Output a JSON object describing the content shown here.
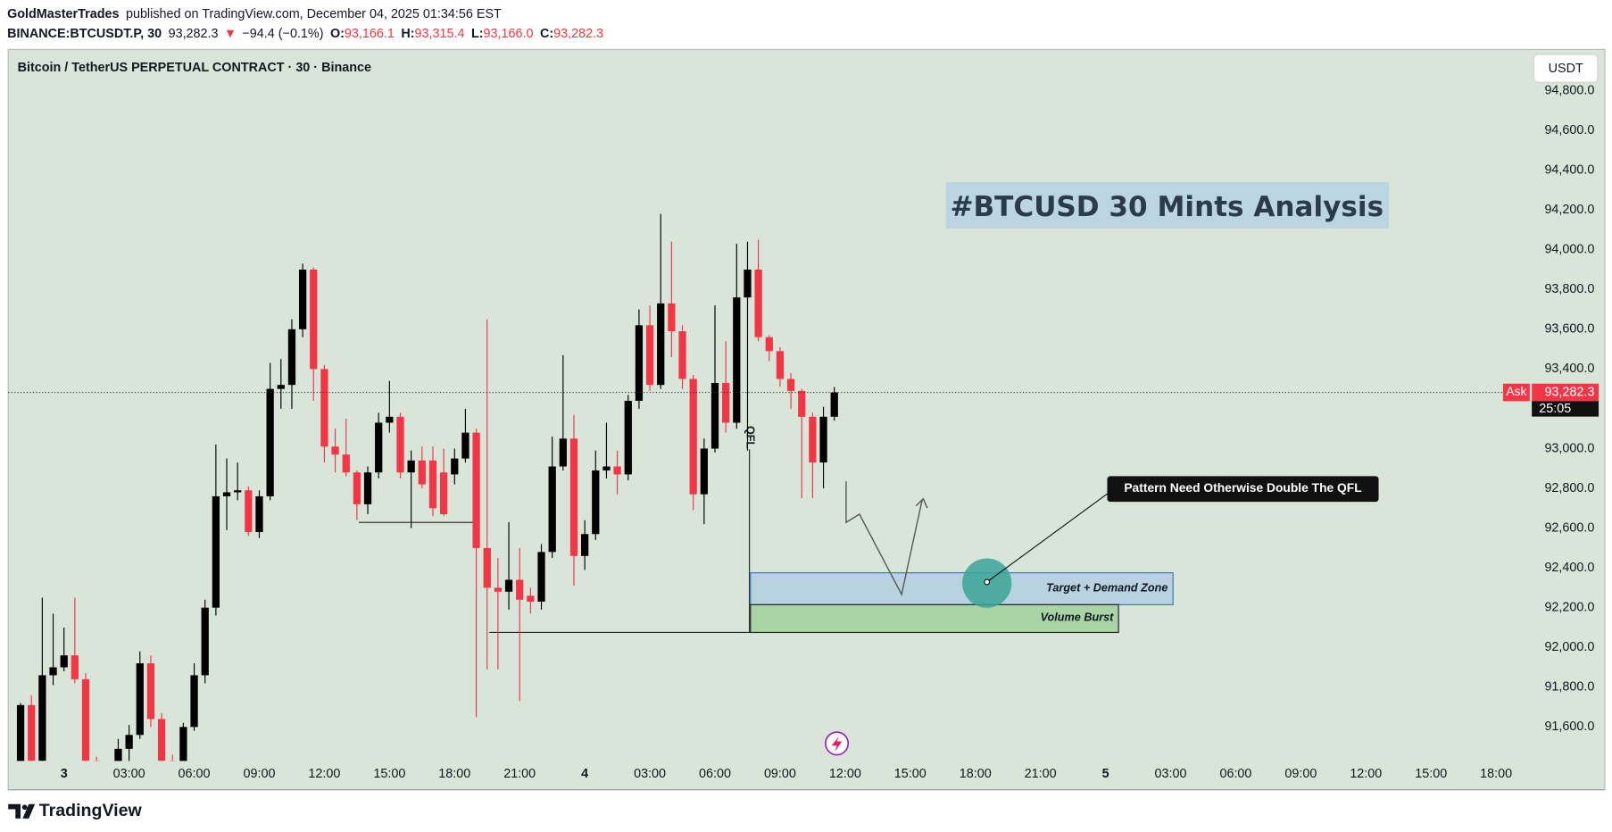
{
  "header": {
    "author": "GoldMasterTrades",
    "published": "published on TradingView.com, December 04, 2025 01:34:56 EST",
    "symbol": "BINANCE:BTCUSDT.P, 30",
    "last": "93,282.3",
    "direction": "▼",
    "change": "−94.4 (−0.1%)",
    "o_label": "O:",
    "o": "93,166.1",
    "h_label": "H:",
    "h": "93,315.4",
    "l_label": "L:",
    "l": "93,166.0",
    "c_label": "C:",
    "c": "93,282.3"
  },
  "footer": {
    "brand": "TradingView"
  },
  "chart_data": {
    "type": "candlestick",
    "title": "Bitcoin / TetherUS PERPETUAL CONTRACT · 30 · Binance",
    "currency": "USDT",
    "annotations": {
      "headline": "#BTCUSD 30 Mints Analysis",
      "callout": "Pattern Need Otherwise Double The QFL",
      "demand_zone": "Target + Demand Zone",
      "volume_zone": "Volume Burst",
      "qfl": "QFL"
    },
    "price_tag": "Ask",
    "price_label": "93,282.3",
    "countdown": "25:05",
    "up_color": "#000000",
    "down_color": "#f23645",
    "grid": false,
    "xlim": [
      -1.14,
      139.1
    ],
    "ylim": [
      91429,
      95007
    ],
    "xticks": [
      {
        "value": 4,
        "label": "3"
      },
      {
        "value": 10,
        "label": "03:00"
      },
      {
        "value": 16,
        "label": "06:00"
      },
      {
        "value": 22,
        "label": "09:00"
      },
      {
        "value": 28,
        "label": "12:00"
      },
      {
        "value": 34,
        "label": "15:00"
      },
      {
        "value": 40,
        "label": "18:00"
      },
      {
        "value": 46,
        "label": "21:00"
      },
      {
        "value": 52,
        "label": "4"
      },
      {
        "value": 58,
        "label": "03:00"
      },
      {
        "value": 64,
        "label": "06:00"
      },
      {
        "value": 70,
        "label": "09:00"
      },
      {
        "value": 76,
        "label": "12:00"
      },
      {
        "value": 82,
        "label": "15:00"
      },
      {
        "value": 88,
        "label": "18:00"
      },
      {
        "value": 94,
        "label": "21:00"
      },
      {
        "value": 100,
        "label": "5"
      },
      {
        "value": 106,
        "label": "03:00"
      },
      {
        "value": 112,
        "label": "06:00"
      },
      {
        "value": 118,
        "label": "09:00"
      },
      {
        "value": 124,
        "label": "12:00"
      },
      {
        "value": 130,
        "label": "15:00"
      },
      {
        "value": 136,
        "label": "18:00"
      }
    ],
    "yticks": [
      {
        "value": 91600,
        "label": "91,600.0"
      },
      {
        "value": 91800,
        "label": "91,800.0"
      },
      {
        "value": 92000,
        "label": "92,000.0"
      },
      {
        "value": 92200,
        "label": "92,200.0"
      },
      {
        "value": 92400,
        "label": "92,400.0"
      },
      {
        "value": 92600,
        "label": "92,600.0"
      },
      {
        "value": 92800,
        "label": "92,800.0"
      },
      {
        "value": 93000,
        "label": "93,000.0"
      },
      {
        "value": 93200,
        "label": "93,200.0"
      },
      {
        "value": 93400,
        "label": "93,400.0"
      },
      {
        "value": 93600,
        "label": "93,600.0"
      },
      {
        "value": 93800,
        "label": "93,800.0"
      },
      {
        "value": 94000,
        "label": "94,000.0"
      },
      {
        "value": 94200,
        "label": "94,200.0"
      },
      {
        "value": 94400,
        "label": "94,400.0"
      },
      {
        "value": 94600,
        "label": "94,600.0"
      },
      {
        "value": 94800,
        "label": "94,800.0"
      }
    ],
    "open": [
      91400,
      91710,
      91430,
      91860,
      91900,
      91960,
      91840,
      91430,
      91300,
      91380,
      91490,
      91560,
      91920,
      91640,
      91430,
      91400,
      91600,
      91860,
      92200,
      92760,
      92780,
      92790,
      92580,
      92760,
      93300,
      93320,
      93600,
      93900,
      93400,
      93010,
      92970,
      92880,
      92720,
      92880,
      93130,
      93160,
      92880,
      92940,
      92940,
      92880,
      92870,
      92950,
      93080,
      92500,
      92300,
      92280,
      92340,
      92260,
      92230,
      92480,
      92910,
      93050,
      92460,
      92570,
      92890,
      92910,
      92870,
      93240,
      93620,
      93320,
      93730,
      93590,
      93350,
      92770,
      93000,
      93330,
      93130,
      93760,
      93900,
      93560,
      93490,
      93350,
      93290,
      93160,
      92930,
      93160
    ],
    "high": [
      91720,
      91760,
      92250,
      92170,
      92100,
      92250,
      91870,
      91450,
      91420,
      91540,
      91610,
      91980,
      91960,
      91670,
      91460,
      91620,
      91920,
      92240,
      93020,
      92950,
      92930,
      92810,
      92790,
      93430,
      93450,
      93650,
      93930,
      93910,
      93420,
      93100,
      93150,
      92890,
      92910,
      93180,
      93340,
      93180,
      92990,
      93010,
      93010,
      93000,
      93000,
      93200,
      93100,
      93650,
      92450,
      92630,
      92500,
      92300,
      92520,
      93060,
      93470,
      93170,
      92640,
      92990,
      93130,
      92990,
      93270,
      93700,
      93720,
      94180,
      94040,
      93620,
      93370,
      93050,
      93720,
      93540,
      94030,
      94040,
      94050,
      93570,
      93510,
      93380,
      93300,
      93180,
      93210,
      93310
    ],
    "low": [
      91380,
      91400,
      91420,
      91810,
      91880,
      91820,
      91400,
      91250,
      91250,
      91350,
      91420,
      91540,
      91600,
      91400,
      91350,
      91380,
      91580,
      91820,
      92160,
      92590,
      92740,
      92560,
      92550,
      92740,
      93200,
      93200,
      93560,
      93240,
      92930,
      92880,
      92860,
      92640,
      92670,
      92850,
      93080,
      92850,
      92600,
      92800,
      92660,
      92660,
      92820,
      92930,
      91650,
      91890,
      91890,
      92190,
      91730,
      92170,
      92190,
      92450,
      92890,
      92310,
      92390,
      92540,
      92850,
      92770,
      92840,
      93200,
      93290,
      93300,
      93460,
      93300,
      92690,
      92620,
      92980,
      93080,
      93100,
      92990,
      93540,
      93440,
      93310,
      93200,
      92750,
      92750,
      92800,
      93140
    ],
    "close": [
      91710,
      91430,
      91860,
      91900,
      91960,
      91840,
      91430,
      91300,
      91380,
      91490,
      91560,
      91920,
      91640,
      91430,
      91400,
      91600,
      91860,
      92200,
      92760,
      92780,
      92790,
      92580,
      92760,
      93300,
      93320,
      93600,
      93900,
      93400,
      93010,
      92970,
      92880,
      92720,
      92880,
      93130,
      93160,
      92880,
      92940,
      92820,
      92700,
      92670,
      92950,
      93080,
      92500,
      92300,
      92280,
      92340,
      92240,
      92230,
      92480,
      92910,
      93050,
      92460,
      92570,
      92890,
      92910,
      92870,
      93240,
      93620,
      93320,
      93730,
      93590,
      93350,
      92770,
      93000,
      93330,
      93130,
      93760,
      93900,
      93560,
      93490,
      93350,
      93290,
      93160,
      92930,
      93160,
      93282.3
    ]
  }
}
